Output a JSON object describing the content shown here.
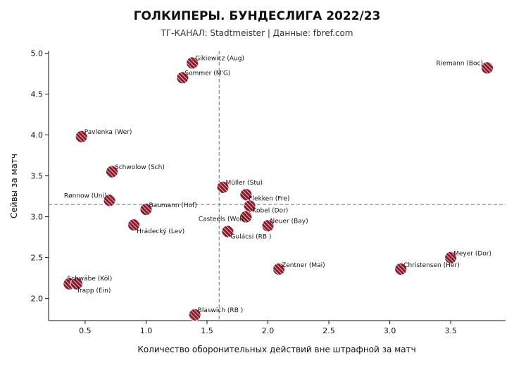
{
  "chart_data": {
    "type": "scatter",
    "title": "ГОЛКИПЕРЫ. БУНДЕСЛИГА 2022/23",
    "subtitle": "ТГ-КАНАЛ: Stadtmeister | Данные: fbref.com",
    "xlabel": "Количество оборонительных действий вне штрафной за матч",
    "ylabel": "Сейвы за матч",
    "xlim": [
      0.2,
      3.95
    ],
    "ylim": [
      1.73,
      5.03
    ],
    "xticks": [
      "0.5",
      "1.0",
      "1.5",
      "2.0",
      "2.5",
      "3.0",
      "3.5"
    ],
    "yticks": [
      "2.0",
      "2.5",
      "3.0",
      "3.5",
      "4.0",
      "4.5",
      "5.0"
    ],
    "reference_lines": {
      "x": 1.6,
      "y": 3.15
    },
    "grid": false,
    "marker_color": "#8b1a2b",
    "hatch_color": "#ffffff",
    "line_color": "#888888",
    "points": [
      {
        "name": "Gikiewicz (Aug)",
        "x": 1.38,
        "y": 4.88
      },
      {
        "name": "Sommer (M'G)",
        "x": 1.3,
        "y": 4.7
      },
      {
        "name": "Riemann (Boc)",
        "x": 3.8,
        "y": 4.82
      },
      {
        "name": "Pavlenka (Wer)",
        "x": 0.47,
        "y": 3.98
      },
      {
        "name": "Schwolow (Sch)",
        "x": 0.72,
        "y": 3.55
      },
      {
        "name": "Müller (Stu)",
        "x": 1.63,
        "y": 3.36
      },
      {
        "name": "Flekken (Fre)",
        "x": 1.82,
        "y": 3.27
      },
      {
        "name": "Kobel (Dor)",
        "x": 1.85,
        "y": 3.13
      },
      {
        "name": "Casteels (Wol)",
        "x": 1.82,
        "y": 3.0
      },
      {
        "name": "Rønnow (Uni)",
        "x": 0.7,
        "y": 3.2
      },
      {
        "name": "Baumann (Hof)",
        "x": 1.0,
        "y": 3.09
      },
      {
        "name": "Hrádecký (Lev)",
        "x": 0.9,
        "y": 2.9
      },
      {
        "name": "Neuer (Bay)",
        "x": 2.0,
        "y": 2.89
      },
      {
        "name": "Gulácsi (RB )",
        "x": 1.67,
        "y": 2.82
      },
      {
        "name": "Meyer (Dor)",
        "x": 3.5,
        "y": 2.5
      },
      {
        "name": "Zentner (Mai)",
        "x": 2.09,
        "y": 2.36
      },
      {
        "name": "Christensen (Her)",
        "x": 3.09,
        "y": 2.36
      },
      {
        "name": "Schwäbe (Köl)",
        "x": 0.37,
        "y": 2.18
      },
      {
        "name": "Trapp (Ein)",
        "x": 0.43,
        "y": 2.18
      },
      {
        "name": "Blaswich (RB )",
        "x": 1.4,
        "y": 1.8
      }
    ]
  }
}
